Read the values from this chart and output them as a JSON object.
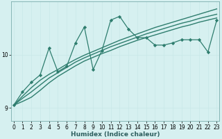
{
  "title": "",
  "xlabel": "Humidex (Indice chaleur)",
  "bg_color": "#d6f0f0",
  "line_color": "#2e7d6e",
  "grid_color": "#c8e8e8",
  "x_data": [
    0,
    1,
    2,
    3,
    4,
    5,
    6,
    7,
    8,
    9,
    10,
    11,
    12,
    13,
    14,
    15,
    16,
    17,
    18,
    19,
    20,
    21,
    22,
    23
  ],
  "y_main": [
    9.05,
    9.3,
    9.48,
    9.62,
    10.12,
    9.68,
    9.78,
    10.22,
    10.52,
    9.72,
    10.08,
    10.65,
    10.72,
    10.48,
    10.32,
    10.32,
    10.18,
    10.18,
    10.22,
    10.28,
    10.28,
    10.28,
    10.05,
    10.65
  ],
  "y_line1": [
    9.05,
    9.22,
    9.38,
    9.52,
    9.63,
    9.72,
    9.82,
    9.91,
    9.99,
    10.06,
    10.13,
    10.2,
    10.27,
    10.33,
    10.39,
    10.45,
    10.51,
    10.56,
    10.61,
    10.66,
    10.71,
    10.76,
    10.81,
    10.86
  ],
  "y_line2": [
    9.05,
    9.18,
    9.3,
    9.43,
    9.56,
    9.66,
    9.76,
    9.86,
    9.94,
    10.01,
    10.08,
    10.15,
    10.21,
    10.27,
    10.33,
    10.39,
    10.44,
    10.49,
    10.54,
    10.59,
    10.63,
    10.68,
    10.72,
    10.76
  ],
  "y_line3": [
    9.05,
    9.12,
    9.2,
    9.33,
    9.47,
    9.59,
    9.69,
    9.79,
    9.88,
    9.95,
    10.02,
    10.08,
    10.15,
    10.21,
    10.27,
    10.32,
    10.37,
    10.42,
    10.47,
    10.52,
    10.56,
    10.61,
    10.65,
    10.69
  ],
  "ylim": [
    8.75,
    11.0
  ],
  "yticks": [
    9,
    10
  ],
  "xticks": [
    0,
    1,
    2,
    3,
    4,
    5,
    6,
    7,
    8,
    9,
    10,
    11,
    12,
    13,
    14,
    15,
    16,
    17,
    18,
    19,
    20,
    21,
    22,
    23
  ],
  "xlabel_fontsize": 6.5,
  "tick_fontsize": 5.5
}
